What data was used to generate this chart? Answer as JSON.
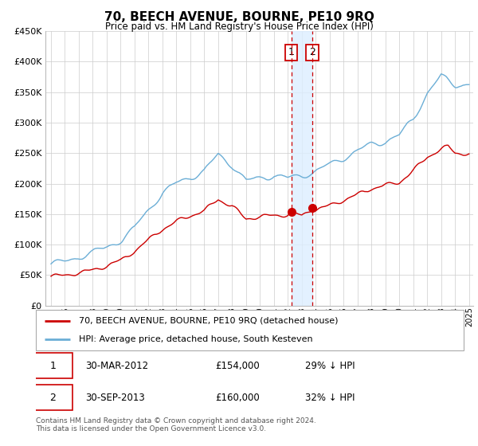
{
  "title": "70, BEECH AVENUE, BOURNE, PE10 9RQ",
  "subtitle": "Price paid vs. HM Land Registry's House Price Index (HPI)",
  "legend_line1": "70, BEECH AVENUE, BOURNE, PE10 9RQ (detached house)",
  "legend_line2": "HPI: Average price, detached house, South Kesteven",
  "footnote": "Contains HM Land Registry data © Crown copyright and database right 2024.\nThis data is licensed under the Open Government Licence v3.0.",
  "annotation1_label": "1",
  "annotation1_date": "30-MAR-2012",
  "annotation1_price": "£154,000",
  "annotation1_hpi": "29% ↓ HPI",
  "annotation2_label": "2",
  "annotation2_date": "30-SEP-2013",
  "annotation2_price": "£160,000",
  "annotation2_hpi": "32% ↓ HPI",
  "hpi_color": "#6baed6",
  "price_color": "#cc0000",
  "marker_color": "#cc0000",
  "vline_color": "#cc0000",
  "vshade_color": "#ddeeff",
  "grid_color": "#cccccc",
  "ylim": [
    0,
    450000
  ],
  "ytick_values": [
    0,
    50000,
    100000,
    150000,
    200000,
    250000,
    300000,
    350000,
    400000,
    450000
  ],
  "ytick_labels": [
    "£0",
    "£50K",
    "£100K",
    "£150K",
    "£200K",
    "£250K",
    "£300K",
    "£350K",
    "£400K",
    "£450K"
  ],
  "year_start": 1995,
  "year_end": 2025,
  "sale1_year": 2012.25,
  "sale1_value": 154000,
  "sale2_year": 2013.75,
  "sale2_value": 160000,
  "hpi_waypoints_years": [
    1995,
    1996,
    1997,
    1998,
    1999,
    2000,
    2001,
    2002,
    2003,
    2004,
    2005,
    2006,
    2007,
    2008,
    2009,
    2010,
    2011,
    2012,
    2013,
    2014,
    2015,
    2016,
    2017,
    2018,
    2019,
    2020,
    2021,
    2022,
    2023,
    2024,
    2025
  ],
  "hpi_waypoints_vals": [
    68000,
    72000,
    80000,
    88000,
    96000,
    108000,
    128000,
    158000,
    185000,
    200000,
    210000,
    220000,
    248000,
    232000,
    205000,
    210000,
    215000,
    210000,
    215000,
    222000,
    232000,
    244000,
    255000,
    265000,
    272000,
    280000,
    308000,
    350000,
    378000,
    365000,
    365000
  ],
  "price_waypoints_years": [
    1995,
    1996,
    1997,
    1998,
    1999,
    2000,
    2001,
    2002,
    2003,
    2004,
    2005,
    2006,
    2007,
    2008,
    2009,
    2010,
    2011,
    2012,
    2012.25,
    2012.5,
    2013,
    2013.75,
    2014,
    2015,
    2016,
    2017,
    2018,
    2019,
    2020,
    2021,
    2022,
    2023,
    2023.5,
    2024,
    2025
  ],
  "price_waypoints_vals": [
    48000,
    50000,
    54000,
    59000,
    66000,
    74000,
    90000,
    108000,
    126000,
    138000,
    147000,
    155000,
    175000,
    163000,
    143000,
    147000,
    149000,
    150000,
    154000,
    152000,
    148000,
    160000,
    158000,
    165000,
    174000,
    183000,
    193000,
    198000,
    203000,
    222000,
    245000,
    258000,
    262000,
    252000,
    250000
  ]
}
